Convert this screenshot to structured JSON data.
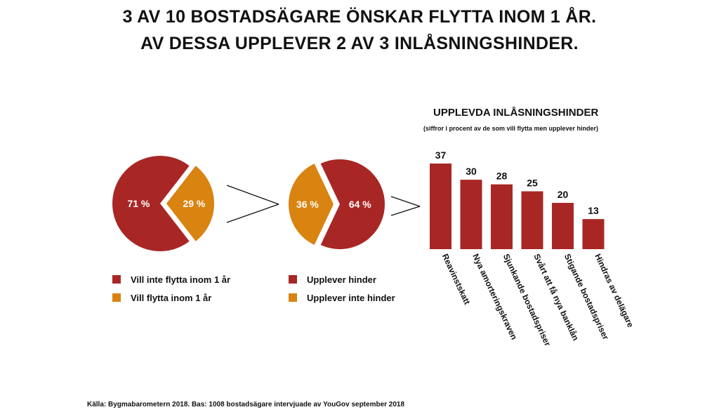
{
  "title": {
    "line1": "3 AV 10 BOSTADSÄGARE ÖNSKAR FLYTTA INOM 1 ÅR.",
    "line2": "AV DESSA UPPLEVER 2 AV 3 INLÅSNINGSHINDER."
  },
  "colors": {
    "dark_red": "#a82725",
    "orange": "#d98310",
    "line": "#111111"
  },
  "chart_data": [
    {
      "type": "pie",
      "slices": [
        {
          "label": "Vill inte flytta inom 1 år",
          "value": 71,
          "display": "71  %",
          "color": "#a82725"
        },
        {
          "label": "Vill flytta inom 1 år",
          "value": 29,
          "display": "29  %",
          "color": "#d98310"
        }
      ]
    },
    {
      "type": "pie",
      "slices": [
        {
          "label": "Upplever hinder",
          "value": 64,
          "display": "64  %",
          "color": "#a82725"
        },
        {
          "label": "Upplever inte hinder",
          "value": 36,
          "display": "36  %",
          "color": "#d98310"
        }
      ]
    },
    {
      "type": "bar",
      "title": "UPPLEVDA INLÅSNINGSHINDER",
      "subtitle": "(siffror i procent av de som vill flytta men upplever hinder)",
      "categories": [
        "Reavinstskatt",
        "Nya amorteringskraven",
        "Sjunkande bostadspriser",
        "Svårt att få nya banklån",
        "Stigande bostadspriser",
        "Hindras av delägare"
      ],
      "values": [
        37,
        30,
        28,
        25,
        20,
        13
      ],
      "ylim": [
        0,
        37
      ],
      "color": "#a82725"
    }
  ],
  "legend1": [
    "Vill inte flytta inom 1 år",
    "Vill flytta inom 1 år"
  ],
  "legend2": [
    "Upplever hinder",
    "Upplever inte hinder"
  ],
  "source": "Källa: Bygmabarometern 2018. Bas: 1008 bostadsägare intervjuade av YouGov september 2018"
}
